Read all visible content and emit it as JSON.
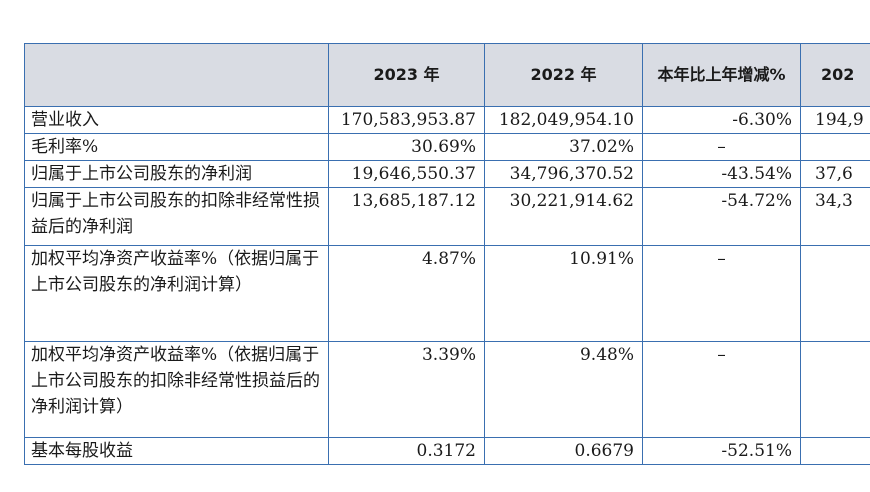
{
  "table": {
    "headers": [
      "",
      "2023 年",
      "2022 年",
      "本年比上年增减%",
      "202"
    ],
    "rows": [
      {
        "label": "营业收入",
        "v2023": "170,583,953.87",
        "v2022": "182,049,954.10",
        "change": "-6.30%",
        "v2021": "194,9"
      },
      {
        "label": "毛利率%",
        "v2023": "30.69%",
        "v2022": "37.02%",
        "change": "–",
        "v2021": ""
      },
      {
        "label": "归属于上市公司股东的净利润",
        "v2023": "19,646,550.37",
        "v2022": "34,796,370.52",
        "change": "-43.54%",
        "v2021": "37,6"
      },
      {
        "label": "归属于上市公司股东的扣除非经常性损益后的净利润",
        "v2023": "13,685,187.12",
        "v2022": "30,221,914.62",
        "change": "-54.72%",
        "v2021": "34,3"
      },
      {
        "label": "加权平均净资产收益率%（依据归属于上市公司股东的净利润计算）",
        "v2023": "4.87%",
        "v2022": "10.91%",
        "change": "–",
        "v2021": ""
      },
      {
        "label": "加权平均净资产收益率%（依据归属于上市公司股东的扣除非经常性损益后的净利润计算）",
        "v2023": "3.39%",
        "v2022": "9.48%",
        "change": "–",
        "v2021": ""
      },
      {
        "label": "基本每股收益",
        "v2023": "0.3172",
        "v2022": "0.6679",
        "change": "-52.51%",
        "v2021": ""
      }
    ]
  }
}
